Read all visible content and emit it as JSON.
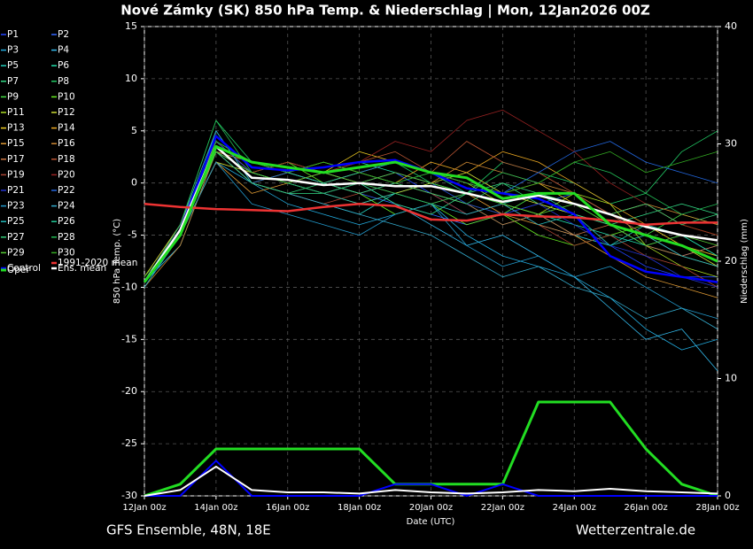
{
  "chart_data": {
    "type": "line",
    "title": "Nové Zámky  (SK)  850 hPa Temp. & Niederschlag | Mon, 12Jan2026 00Z",
    "footer_left": "GFS Ensemble, 48N, 18E",
    "footer_right": "Wetterzentrale.de",
    "xlabel": "Date (UTC)",
    "ylabel": "850 hPa Temp. (°C)",
    "y2label": "Niederschlag (mm)",
    "x": [
      0,
      1,
      2,
      3,
      4,
      5,
      6,
      7,
      8,
      9,
      10,
      11,
      12,
      13,
      14,
      15,
      16
    ],
    "xlim": [
      0,
      16
    ],
    "xticks": [
      {
        "value": 0,
        "label": "12Jan 00z"
      },
      {
        "value": 2,
        "label": "14Jan 00z"
      },
      {
        "value": 4,
        "label": "16Jan 00z"
      },
      {
        "value": 6,
        "label": "18Jan 00z"
      },
      {
        "value": 8,
        "label": "20Jan 00z"
      },
      {
        "value": 10,
        "label": "22Jan 00z"
      },
      {
        "value": 12,
        "label": "24Jan 00z"
      },
      {
        "value": 14,
        "label": "26Jan 00z"
      },
      {
        "value": 16,
        "label": "28Jan 00z"
      }
    ],
    "ylim": [
      -30,
      15
    ],
    "yticks": [
      -30,
      -25,
      -20,
      -15,
      -10,
      -5,
      0,
      5,
      10,
      15
    ],
    "y2lim": [
      0,
      40
    ],
    "y2ticks": [
      0,
      10,
      20,
      30,
      40
    ],
    "grid": true,
    "series": [
      {
        "name": "P1",
        "color": "#2244ff",
        "line_width": 0.8,
        "values": [
          -9.5,
          -5,
          3,
          1,
          0,
          -1,
          0,
          1,
          -1,
          -3,
          -2,
          -4,
          -5,
          -6,
          -8,
          -9,
          -9
        ]
      },
      {
        "name": "P2",
        "color": "#3366ff",
        "line_width": 0.8,
        "values": [
          -9.5,
          -4,
          4,
          2,
          1,
          0,
          -1,
          -2,
          -3,
          -4,
          -3,
          -2,
          -1,
          -3,
          -5,
          -7,
          -6
        ]
      },
      {
        "name": "P3",
        "color": "#22aadd",
        "line_width": 0.8,
        "values": [
          -10,
          -5,
          2,
          0,
          -2,
          -3,
          -4,
          -3,
          -2,
          -5,
          -7,
          -8,
          -9,
          -11,
          -14,
          -16,
          -15
        ]
      },
      {
        "name": "P4",
        "color": "#33bbee",
        "line_width": 0.8,
        "values": [
          -9.5,
          -6,
          3,
          1,
          2,
          1,
          0,
          -2,
          -4,
          -6,
          -5,
          -7,
          -9,
          -12,
          -15,
          -14,
          -18
        ]
      },
      {
        "name": "P5",
        "color": "#22ccbb",
        "line_width": 0.8,
        "values": [
          -9.5,
          -5,
          5,
          0,
          -1,
          -2,
          -3,
          -1,
          0,
          -2,
          -4,
          -3,
          -5,
          -6,
          -4,
          -5,
          -7
        ]
      },
      {
        "name": "P6",
        "color": "#22ddaa",
        "line_width": 0.8,
        "values": [
          -9,
          -4,
          4,
          1,
          0,
          1,
          2,
          1,
          0,
          -1,
          -2,
          -3,
          -4,
          -5,
          -6,
          -7,
          -8
        ]
      },
      {
        "name": "P7",
        "color": "#33dd88",
        "line_width": 0.8,
        "values": [
          -9.5,
          -5,
          3,
          0,
          -1,
          -1,
          0,
          -2,
          -3,
          -1,
          0,
          -2,
          -3,
          -4,
          -3,
          -2,
          -3
        ]
      },
      {
        "name": "P8",
        "color": "#22cc66",
        "line_width": 0.8,
        "values": [
          -9.5,
          -4,
          6,
          2,
          1,
          0,
          1,
          2,
          0,
          -1,
          2,
          1,
          0,
          -2,
          -1,
          3,
          5
        ]
      },
      {
        "name": "P9",
        "color": "#44dd44",
        "line_width": 0.8,
        "values": [
          -10,
          -5,
          3,
          0,
          1,
          2,
          1,
          0,
          -1,
          -2,
          -3,
          -1,
          -2,
          -4,
          -5,
          -3,
          -4
        ]
      },
      {
        "name": "P10",
        "color": "#66ee22",
        "line_width": 0.8,
        "values": [
          -9.5,
          -5,
          4,
          1,
          2,
          0,
          -1,
          -3,
          -2,
          -4,
          -3,
          -5,
          -6,
          -5,
          -4,
          -6,
          -7
        ]
      },
      {
        "name": "P11",
        "color": "#aadd22",
        "line_width": 0.8,
        "values": [
          -9.5,
          -4,
          3,
          2,
          1,
          2,
          1,
          2,
          1,
          0,
          -2,
          -3,
          -1,
          -2,
          -6,
          -8,
          -9
        ]
      },
      {
        "name": "P12",
        "color": "#ccdd33",
        "line_width": 0.8,
        "values": [
          -9.5,
          -5,
          2,
          1,
          0,
          -1,
          -2,
          -1,
          0,
          1,
          -1,
          -2,
          -3,
          -4,
          -5,
          -6,
          -8
        ]
      },
      {
        "name": "P13",
        "color": "#eecc22",
        "line_width": 0.8,
        "values": [
          -9,
          -4,
          4,
          1,
          2,
          1,
          3,
          2,
          1,
          0,
          -1,
          0,
          -2,
          -3,
          -2,
          -4,
          -5
        ]
      },
      {
        "name": "P14",
        "color": "#eeaa22",
        "line_width": 0.8,
        "values": [
          -9.5,
          -5,
          3,
          0,
          1,
          0,
          -1,
          0,
          2,
          1,
          3,
          2,
          0,
          -2,
          -4,
          -6,
          -7
        ]
      },
      {
        "name": "P15",
        "color": "#dd9933",
        "line_width": 0.8,
        "values": [
          -9.5,
          -5,
          2,
          -1,
          0,
          1,
          0,
          -1,
          -2,
          -1,
          -3,
          -4,
          -5,
          -7,
          -9,
          -10,
          -11
        ]
      },
      {
        "name": "P16",
        "color": "#cc8833",
        "line_width": 0.8,
        "values": [
          -10,
          -6,
          3,
          1,
          0,
          -1,
          0,
          1,
          0,
          2,
          1,
          0,
          -1,
          -3,
          -2,
          -3,
          -4
        ]
      },
      {
        "name": "P17",
        "color": "#cc7744",
        "line_width": 0.8,
        "values": [
          -9.5,
          -4,
          3,
          2,
          1,
          0,
          1,
          0,
          -1,
          -2,
          -4,
          -3,
          -5,
          -4,
          -6,
          -7,
          -6
        ]
      },
      {
        "name": "P18",
        "color": "#bb5533",
        "line_width": 0.8,
        "values": [
          -9.5,
          -5,
          4,
          1,
          0,
          1,
          2,
          3,
          1,
          4,
          2,
          1,
          -1,
          -3,
          -5,
          -7,
          -8
        ]
      },
      {
        "name": "P19",
        "color": "#aa4433",
        "line_width": 0.8,
        "values": [
          -9.5,
          -5,
          3,
          0,
          -1,
          -2,
          -1,
          0,
          -1,
          -3,
          -2,
          -4,
          -6,
          -5,
          -7,
          -8,
          -10
        ]
      },
      {
        "name": "P20",
        "color": "#992222",
        "line_width": 0.8,
        "values": [
          -9.5,
          -4,
          3,
          1,
          2,
          1,
          2,
          4,
          3,
          6,
          7,
          5,
          3,
          0,
          -2,
          -4,
          -5
        ]
      },
      {
        "name": "P21",
        "color": "#2233cc",
        "line_width": 0.8,
        "values": [
          -9.5,
          -5,
          4,
          1,
          0,
          -1,
          0,
          1,
          0,
          -2,
          -3,
          -2,
          -4,
          -6,
          -7,
          -9,
          -10
        ]
      },
      {
        "name": "P22",
        "color": "#2266dd",
        "line_width": 0.8,
        "values": [
          -9.5,
          -5,
          3,
          0,
          1,
          0,
          1,
          2,
          1,
          0,
          -1,
          1,
          3,
          4,
          2,
          1,
          0
        ]
      },
      {
        "name": "P23",
        "color": "#2299cc",
        "line_width": 0.8,
        "values": [
          -10,
          -5,
          2,
          -2,
          -3,
          -4,
          -5,
          -3,
          -2,
          -6,
          -8,
          -7,
          -9,
          -8,
          -10,
          -12,
          -13
        ]
      },
      {
        "name": "P24",
        "color": "#33aacc",
        "line_width": 0.8,
        "values": [
          -9.5,
          -4,
          5,
          0,
          -1,
          -2,
          -3,
          -4,
          -5,
          -7,
          -9,
          -8,
          -10,
          -11,
          -13,
          -12,
          -14
        ]
      },
      {
        "name": "P25",
        "color": "#22bbbb",
        "line_width": 0.8,
        "values": [
          -9.5,
          -5,
          3,
          1,
          0,
          -1,
          -2,
          -1,
          -2,
          -3,
          -2,
          -4,
          -3,
          -6,
          -5,
          -7,
          -8
        ]
      },
      {
        "name": "P26",
        "color": "#22cc99",
        "line_width": 0.8,
        "values": [
          -9.5,
          -5,
          4,
          2,
          1,
          0,
          -1,
          0,
          1,
          -1,
          -2,
          -1,
          -3,
          -4,
          -6,
          -5,
          -7
        ]
      },
      {
        "name": "P27",
        "color": "#33cc77",
        "line_width": 0.8,
        "values": [
          -9.5,
          -5,
          3,
          0,
          -1,
          0,
          1,
          0,
          -1,
          -2,
          0,
          -1,
          -2,
          -3,
          -2,
          -4,
          -3
        ]
      },
      {
        "name": "P28",
        "color": "#22bb55",
        "line_width": 0.8,
        "values": [
          -9.5,
          -4,
          6,
          1,
          0,
          -1,
          0,
          -1,
          -2,
          -1,
          1,
          0,
          2,
          1,
          -1,
          -3,
          -2
        ]
      },
      {
        "name": "P29",
        "color": "#55cc33",
        "line_width": 0.8,
        "values": [
          -9.5,
          -5,
          3,
          1,
          0,
          1,
          0,
          1,
          0,
          -1,
          -2,
          -3,
          -2,
          -4,
          -6,
          -5,
          -6
        ]
      },
      {
        "name": "P30",
        "color": "#33aa22",
        "line_width": 0.8,
        "values": [
          -9,
          -5,
          4,
          2,
          1,
          2,
          1,
          0,
          1,
          0,
          -1,
          0,
          2,
          3,
          1,
          2,
          3
        ]
      },
      {
        "name": "Control",
        "color": "#0000ff",
        "line_width": 2.5,
        "values": [
          -9.5,
          -4.5,
          4.5,
          1.5,
          1.2,
          1.5,
          2,
          2.2,
          1,
          -0.5,
          -1,
          -1.5,
          -3,
          -7,
          -8.5,
          -9,
          -9.5
        ]
      },
      {
        "name": "Ens. mean",
        "color": "#ffffff",
        "line_width": 2.5,
        "values": [
          -9.5,
          -4.5,
          3.5,
          0.5,
          0.3,
          -0.2,
          0,
          -0.3,
          -0.3,
          -1,
          -1.8,
          -1.2,
          -2,
          -3,
          -4.2,
          -5,
          -5.5
        ]
      },
      {
        "name": "1991-2020 mean",
        "color": "#ee3333",
        "line_width": 2.5,
        "values": [
          -2,
          -2.3,
          -2.5,
          -2.6,
          -2.7,
          -2.3,
          -2,
          -2.2,
          -3.5,
          -3.6,
          -3,
          -3.2,
          -3.3,
          -3.6,
          -4,
          -3.8,
          -3.8
        ]
      },
      {
        "name": "Oper",
        "color": "#22dd22",
        "line_width": 3,
        "values": [
          -9.5,
          -5,
          3.5,
          2,
          1.5,
          1,
          1.5,
          2,
          1,
          0.5,
          -1.5,
          -1,
          -1,
          -4,
          -5,
          -6,
          -7.5
        ]
      },
      {
        "axis": "y2",
        "color": "#22dd22",
        "line_width": 3,
        "values": [
          0,
          1,
          4,
          4,
          4,
          4,
          4,
          1,
          1,
          1,
          1,
          8,
          8,
          8,
          4,
          1,
          0
        ]
      },
      {
        "axis": "y2",
        "color": "#0000ff",
        "line_width": 2,
        "values": [
          0,
          0,
          3,
          0,
          0,
          0,
          0,
          1,
          1,
          0,
          1,
          0,
          0,
          0,
          0,
          0,
          0
        ]
      },
      {
        "axis": "y2",
        "color": "#ffffff",
        "line_width": 2,
        "values": [
          0,
          0.5,
          2.5,
          0.5,
          0.3,
          0.3,
          0.2,
          0.5,
          0.3,
          0.2,
          0.3,
          0.5,
          0.4,
          0.6,
          0.4,
          0.3,
          0.2
        ]
      }
    ]
  }
}
